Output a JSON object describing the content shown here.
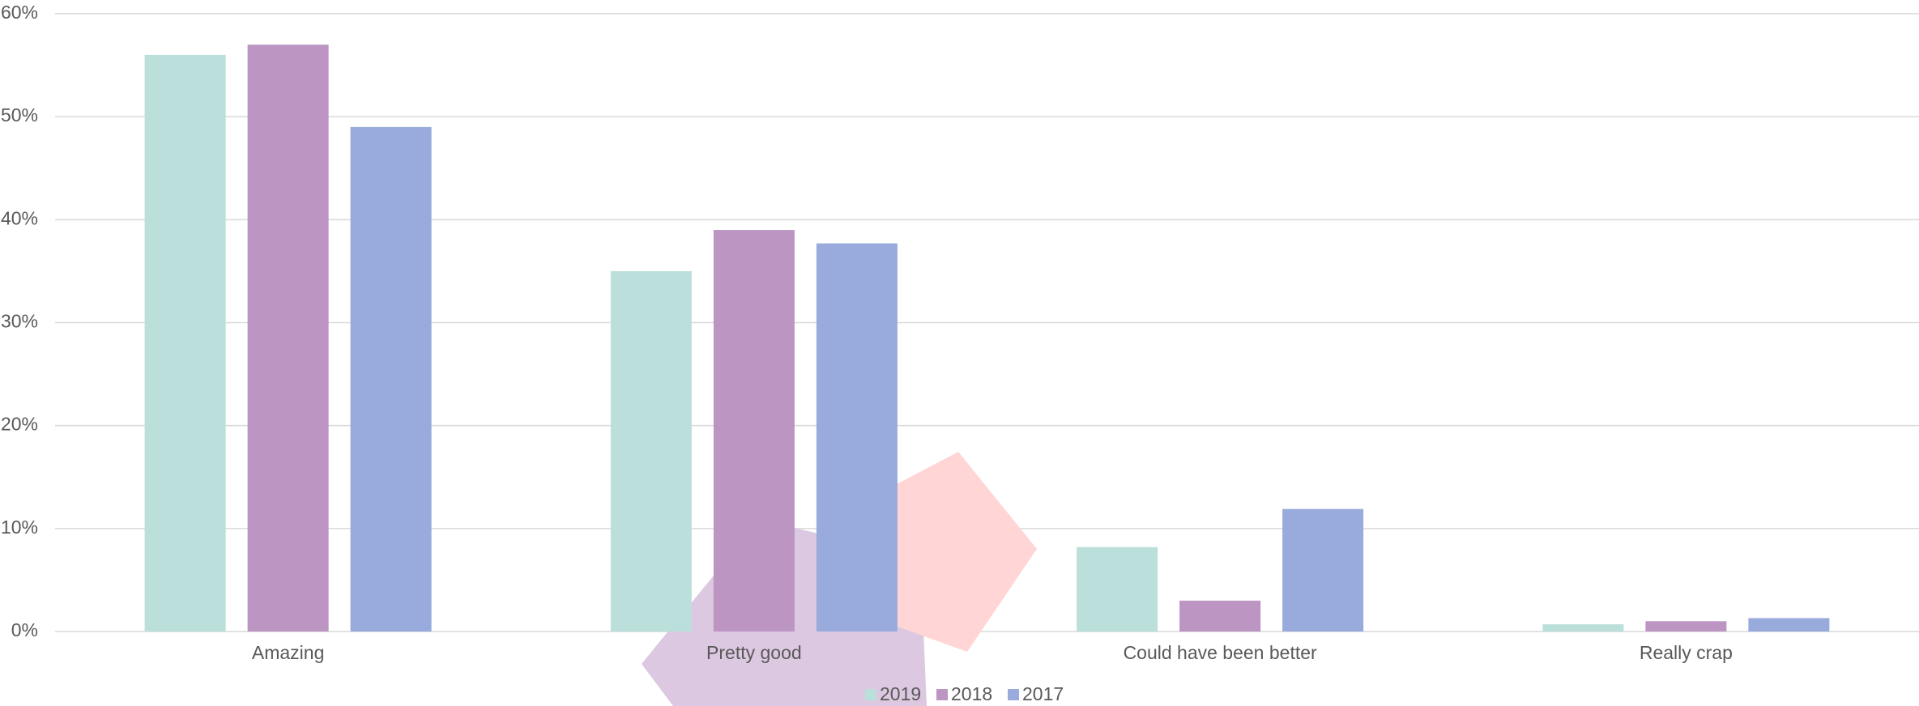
{
  "chart_data": {
    "type": "bar",
    "categories": [
      "Amazing",
      "Pretty good",
      "Could have been better",
      "Really crap"
    ],
    "series": [
      {
        "name": "2019",
        "color": "#bbdfdb",
        "values": [
          56,
          35,
          8.2,
          0.7
        ]
      },
      {
        "name": "2018",
        "color": "#bc95c3",
        "values": [
          57,
          39,
          3,
          1.0
        ]
      },
      {
        "name": "2017",
        "color": "#98abdc",
        "values": [
          49,
          37.7,
          11.9,
          1.3
        ]
      }
    ],
    "ylim": [
      0,
      60
    ],
    "yticks": [
      {
        "value": 0,
        "label": "0%"
      },
      {
        "value": 10,
        "label": "10%"
      },
      {
        "value": 20,
        "label": "20%"
      },
      {
        "value": 30,
        "label": "30%"
      },
      {
        "value": 40,
        "label": "40%"
      },
      {
        "value": 50,
        "label": "50%"
      },
      {
        "value": 60,
        "label": "60%"
      }
    ],
    "grid": true,
    "legend": "bottom"
  }
}
